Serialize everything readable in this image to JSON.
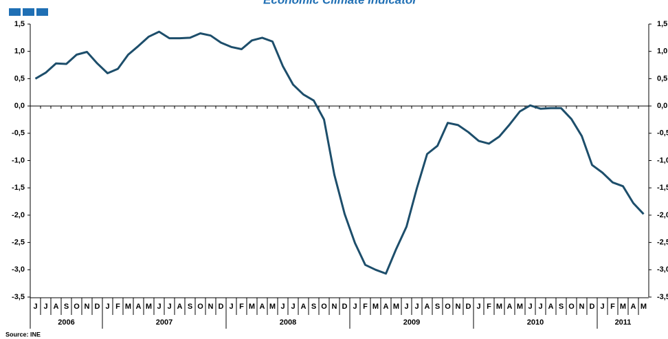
{
  "chart_data": {
    "type": "line",
    "title": "Economic Climate Indicator",
    "source": "Source: INE",
    "color": "#1d4e6b",
    "year_groups": [
      {
        "label": "2006",
        "months": [
          "J",
          "J",
          "A",
          "S",
          "O",
          "N",
          "D"
        ]
      },
      {
        "label": "2007",
        "months": [
          "J",
          "F",
          "M",
          "A",
          "M",
          "J",
          "J",
          "A",
          "S",
          "O",
          "N",
          "D"
        ]
      },
      {
        "label": "2008",
        "months": [
          "J",
          "F",
          "M",
          "A",
          "M",
          "J",
          "J",
          "A",
          "S",
          "O",
          "N",
          "D"
        ]
      },
      {
        "label": "2009",
        "months": [
          "J",
          "F",
          "M",
          "A",
          "M",
          "J",
          "J",
          "A",
          "S",
          "O",
          "N",
          "D"
        ]
      },
      {
        "label": "2010",
        "months": [
          "J",
          "F",
          "M",
          "A",
          "M",
          "J",
          "J",
          "A",
          "S",
          "O",
          "N",
          "D"
        ]
      },
      {
        "label": "2011",
        "months": [
          "J",
          "F",
          "M",
          "A",
          "M"
        ]
      }
    ],
    "values": [
      0.5,
      0.61,
      0.78,
      0.77,
      0.94,
      0.99,
      0.78,
      0.6,
      0.68,
      0.94,
      1.1,
      1.27,
      1.36,
      1.24,
      1.24,
      1.25,
      1.33,
      1.29,
      1.16,
      1.08,
      1.04,
      1.2,
      1.25,
      1.18,
      0.73,
      0.39,
      0.21,
      0.1,
      -0.25,
      -1.26,
      -1.98,
      -2.51,
      -2.91,
      -3.0,
      -3.07,
      -2.62,
      -2.21,
      -1.51,
      -0.88,
      -0.73,
      -0.31,
      -0.35,
      -0.48,
      -0.64,
      -0.69,
      -0.56,
      -0.34,
      -0.1,
      0.01,
      -0.05,
      -0.04,
      -0.04,
      -0.24,
      -0.55,
      -1.08,
      -1.22,
      -1.4,
      -1.47,
      -1.78,
      -1.98
    ],
    "ylim": [
      -3.5,
      1.5
    ],
    "yticks": [
      {
        "value": 1.5,
        "label": "1,5"
      },
      {
        "value": 1,
        "label": "1,0"
      },
      {
        "value": 0.5,
        "label": "0,5"
      },
      {
        "value": 0,
        "label": "0,0"
      },
      {
        "value": -0.5,
        "label": "-0,5"
      },
      {
        "value": -1,
        "label": "-1,0"
      },
      {
        "value": -1.5,
        "label": "-1,5"
      },
      {
        "value": -2,
        "label": "-2,0"
      },
      {
        "value": -2.5,
        "label": "-2,5"
      },
      {
        "value": -3,
        "label": "-3,0"
      },
      {
        "value": -3.5,
        "label": "-3,5"
      }
    ]
  }
}
